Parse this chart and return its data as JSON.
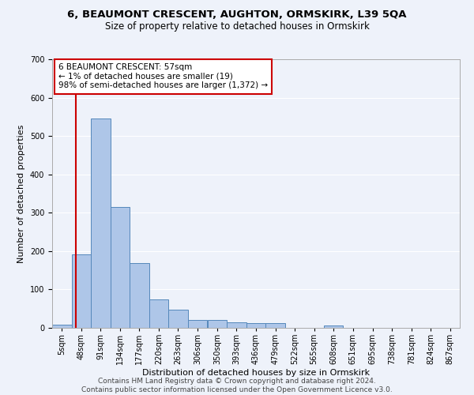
{
  "title1": "6, BEAUMONT CRESCENT, AUGHTON, ORMSKIRK, L39 5QA",
  "title2": "Size of property relative to detached houses in Ormskirk",
  "xlabel": "Distribution of detached houses by size in Ormskirk",
  "ylabel": "Number of detached properties",
  "footer1": "Contains HM Land Registry data © Crown copyright and database right 2024.",
  "footer2": "Contains public sector information licensed under the Open Government Licence v3.0.",
  "bin_labels": [
    "5sqm",
    "48sqm",
    "91sqm",
    "134sqm",
    "177sqm",
    "220sqm",
    "263sqm",
    "306sqm",
    "350sqm",
    "393sqm",
    "436sqm",
    "479sqm",
    "522sqm",
    "565sqm",
    "608sqm",
    "651sqm",
    "695sqm",
    "738sqm",
    "781sqm",
    "824sqm",
    "867sqm"
  ],
  "bar_values": [
    8,
    192,
    546,
    315,
    168,
    75,
    47,
    20,
    20,
    14,
    13,
    13,
    0,
    0,
    6,
    0,
    0,
    0,
    0,
    0,
    0
  ],
  "bar_color": "#aec6e8",
  "bar_edge_color": "#5588bb",
  "property_line_x": 57,
  "property_line_color": "#cc0000",
  "annotation_text": "6 BEAUMONT CRESCENT: 57sqm\n← 1% of detached houses are smaller (19)\n98% of semi-detached houses are larger (1,372) →",
  "annotation_box_facecolor": "#ffffff",
  "annotation_box_edgecolor": "#cc0000",
  "ylim": [
    0,
    700
  ],
  "xlim_min": 5,
  "xlim_max": 910,
  "bin_starts": [
    5,
    48,
    91,
    134,
    177,
    220,
    263,
    306,
    350,
    393,
    436,
    479,
    522,
    565,
    608,
    651,
    695,
    738,
    781,
    824,
    867
  ],
  "bin_width": 43,
  "background_color": "#eef2fa",
  "grid_color": "#ffffff",
  "title1_fontsize": 9.5,
  "title2_fontsize": 8.5,
  "axis_label_fontsize": 8,
  "tick_fontsize": 7,
  "annotation_fontsize": 7.5,
  "footer_fontsize": 6.5,
  "ylabel_fontsize": 8
}
